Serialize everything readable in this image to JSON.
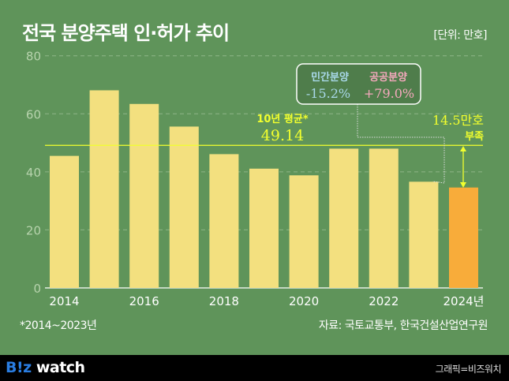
{
  "title": "전국 분양주택 인·허가 추이",
  "unit": "[단위: 만호]",
  "footnote": "*2014~2023년",
  "source": "자료: 국토교통부, 한국건설산업연구원",
  "footer": {
    "logo": "B!z watch",
    "credit": "그래픽=비즈워치"
  },
  "colors": {
    "background": "#5f945a",
    "bar": "#f3e07f",
    "highlight_bar": "#f8ac3a",
    "average_line": "#f2ff2e",
    "private": "#a9d9ea",
    "public": "#f5a9bd"
  },
  "chart_data": {
    "type": "bar",
    "categories": [
      "2014",
      "2015",
      "2016",
      "2017",
      "2018",
      "2019",
      "2020",
      "2021",
      "2022",
      "2023",
      "2024"
    ],
    "values": [
      45.5,
      68.1,
      63.4,
      55.6,
      46.1,
      41.1,
      38.8,
      48.0,
      48.0,
      36.6,
      34.6
    ],
    "highlight": "2024",
    "x_tick_labels": [
      "2014",
      "",
      "2016",
      "",
      "2018",
      "",
      "2020",
      "",
      "2022",
      "",
      "2024년"
    ],
    "y_ticks": [
      0,
      20,
      40,
      60,
      80
    ],
    "ylim": [
      0,
      80
    ],
    "grid": true,
    "average": {
      "label": "10년 평균*",
      "value": "49.14"
    },
    "shortfall": {
      "value": "14.5만호",
      "label": "부족"
    },
    "callout": {
      "private_label": "민간분양",
      "private_value": "-15.2%",
      "public_label": "공공분양",
      "public_value": "+79.0%"
    }
  }
}
